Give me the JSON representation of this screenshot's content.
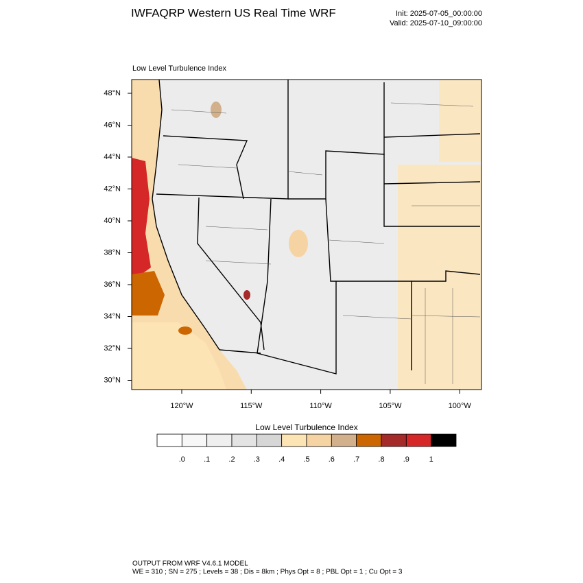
{
  "header": {
    "title": "IWFAQRP Western US Real Time WRF",
    "init": "Init: 2025-07-05_00:00:00",
    "valid": "Valid: 2025-07-10_09:00:00"
  },
  "map": {
    "subtitle": "Low Level Turbulence Index",
    "lat_labels": [
      "48°N",
      "46°N",
      "44°N",
      "42°N",
      "40°N",
      "38°N",
      "36°N",
      "34°N",
      "32°N",
      "30°N"
    ],
    "lon_labels": [
      "120°W",
      "115°W",
      "110°W",
      "105°W",
      "100°W"
    ]
  },
  "colorbar": {
    "title": "Low Level Turbulence Index",
    "labels": [
      ".0",
      ".1",
      ".2",
      ".3",
      ".4",
      ".5",
      ".6",
      ".7",
      ".8",
      ".9",
      "1"
    ],
    "colors": [
      "#ffffff",
      "#f7f7f7",
      "#efefef",
      "#e3e3e3",
      "#d6d6d6",
      "#fde4b4",
      "#f6d3a2",
      "#d2b08c",
      "#cc6600",
      "#a52a2a",
      "#d62728",
      "#000000"
    ]
  },
  "footer": {
    "line1": "OUTPUT FROM WRF V4.6.1 MODEL",
    "line2": "WE = 310 ; SN = 275 ; Levels = 38 ; Dis = 8km ; Phys Opt = 8 ; PBL Opt = 1 ; Cu Opt = 3"
  }
}
